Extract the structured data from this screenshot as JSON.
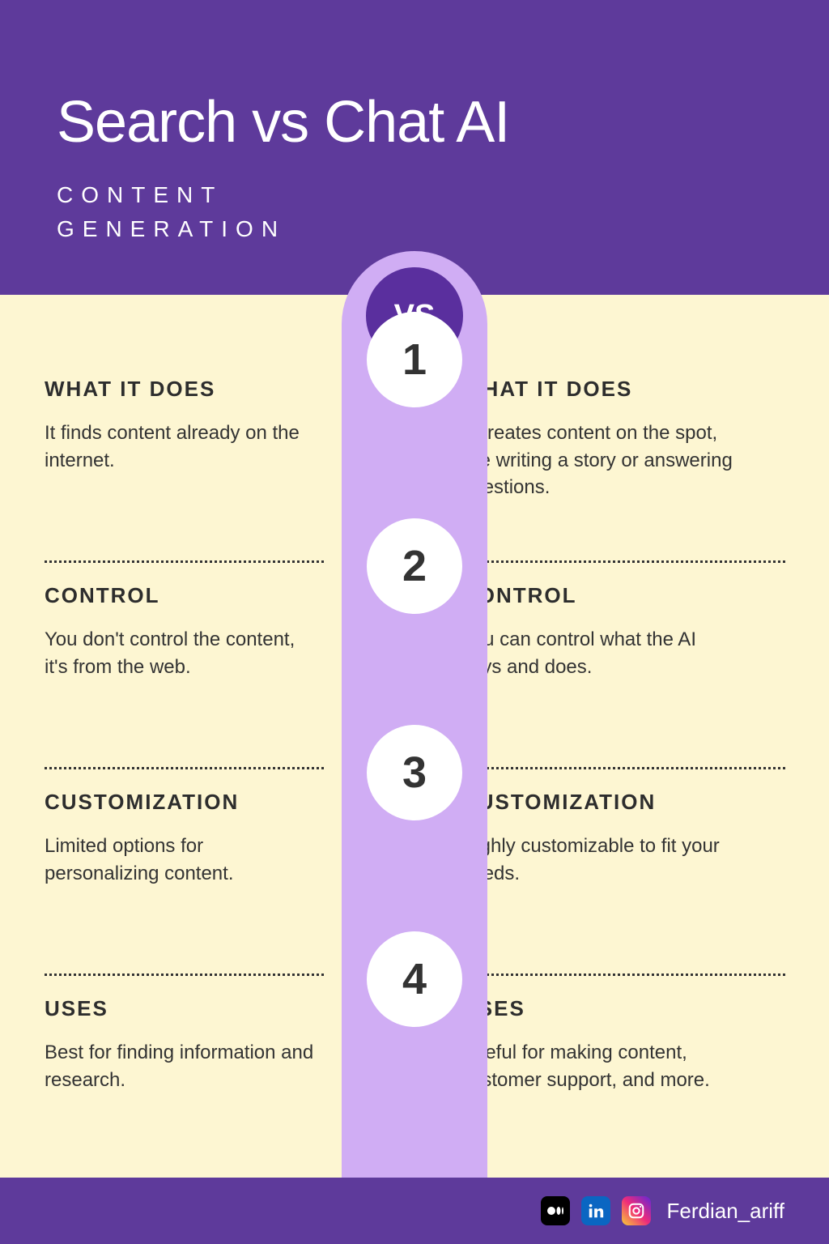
{
  "colors": {
    "header_bg": "#5e3a9b",
    "body_bg": "#fdf6d2",
    "pillar_bg": "#d0adf4",
    "vs_circle_bg": "#5a2f9e",
    "num_text": "#333333",
    "heading_text": "#2d2d2d",
    "body_text": "#333333",
    "dots": "#333333",
    "footer_bg": "#5e3a9b",
    "medium_bg": "#000000",
    "linkedin_bg": "#0a66c2",
    "instagram_border": "#ffffff",
    "white": "#ffffff"
  },
  "header": {
    "title": "Search vs Chat AI",
    "subtitle_line1": "CONTENT",
    "subtitle_line2": "GENERATION"
  },
  "vs_label": "VS",
  "rows": [
    {
      "num": "1",
      "left_heading": "WHAT IT DOES",
      "left_body": "It finds content already on the internet.",
      "right_heading": "WHAT IT DOES",
      "right_body": "It creates content on the spot, like writing a story or answering questions."
    },
    {
      "num": "2",
      "left_heading": "CONTROL",
      "left_body": "You don't control the content, it's from the web.",
      "right_heading": "CONTROL",
      "right_body": "You can control what the AI says and does."
    },
    {
      "num": "3",
      "left_heading": "CUSTOMIZATION",
      "left_body": "Limited options for personalizing content.",
      "right_heading": "CUSTOMIZATION",
      "right_body": "Highly customizable to fit your needs."
    },
    {
      "num": "4",
      "left_heading": "USES",
      "left_body": "Best for finding information and research.",
      "right_heading": "USES",
      "right_body": "Useful for making content, customer support, and more."
    }
  ],
  "footer": {
    "handle": "Ferdian_ariff"
  },
  "layout": {
    "row_tops": [
      20,
      275,
      530,
      785
    ],
    "circle_tops": [
      75,
      330,
      585,
      840
    ]
  }
}
